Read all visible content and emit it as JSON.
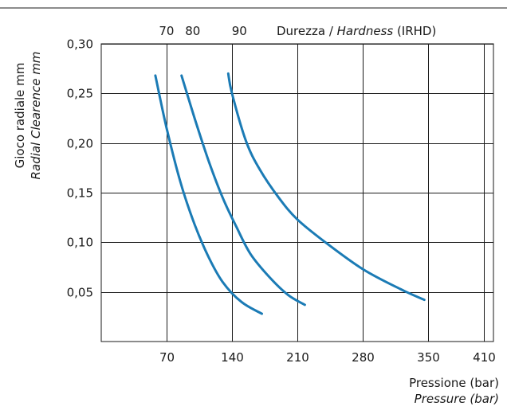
{
  "chart_data": {
    "type": "line",
    "x_axis": {
      "label_line1": "Pressione (bar)",
      "label_line2": "Pressure (bar)",
      "ticks": [
        70,
        140,
        210,
        280,
        350,
        410
      ],
      "tick_labels": [
        "70",
        "140",
        "210",
        "280",
        "350",
        "410"
      ],
      "range": [
        0,
        420
      ]
    },
    "y_axis": {
      "label_line1": "Gioco radiale mm",
      "label_line2": "Radial Clearence mm",
      "ticks": [
        0.05,
        0.1,
        0.15,
        0.2,
        0.25,
        0.3
      ],
      "tick_labels": [
        "0,05",
        "0,10",
        "0,15",
        "0,20",
        "0,25",
        "0,30"
      ],
      "range": [
        0,
        0.3
      ]
    },
    "top_axis": {
      "values": [
        "70",
        "80",
        "90"
      ],
      "label_prefix": "Durezza / ",
      "label_italic": "Hardness",
      "label_suffix": " (IRHD)"
    },
    "grid": true,
    "color": "#1b7bb5",
    "series": [
      {
        "name": "70",
        "points": [
          [
            58,
            0.268
          ],
          [
            70,
            0.215
          ],
          [
            85,
            0.16
          ],
          [
            100,
            0.118
          ],
          [
            115,
            0.085
          ],
          [
            130,
            0.06
          ],
          [
            150,
            0.04
          ],
          [
            172,
            0.028
          ]
        ]
      },
      {
        "name": "80",
        "points": [
          [
            86,
            0.268
          ],
          [
            100,
            0.225
          ],
          [
            115,
            0.182
          ],
          [
            130,
            0.145
          ],
          [
            145,
            0.115
          ],
          [
            160,
            0.088
          ],
          [
            180,
            0.065
          ],
          [
            200,
            0.047
          ],
          [
            218,
            0.037
          ]
        ]
      },
      {
        "name": "90",
        "points": [
          [
            136,
            0.27
          ],
          [
            140,
            0.25
          ],
          [
            155,
            0.202
          ],
          [
            170,
            0.173
          ],
          [
            190,
            0.145
          ],
          [
            210,
            0.123
          ],
          [
            240,
            0.1
          ],
          [
            280,
            0.073
          ],
          [
            320,
            0.053
          ],
          [
            346,
            0.042
          ]
        ]
      }
    ]
  }
}
